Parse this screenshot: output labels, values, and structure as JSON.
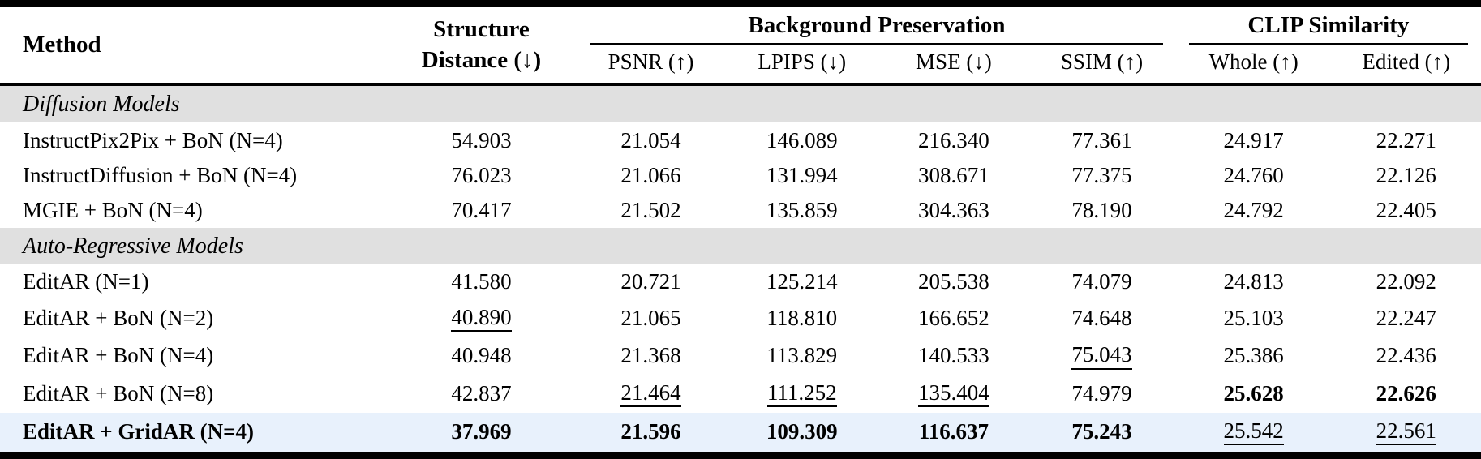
{
  "colors": {
    "section_bg": "#e0e0e0",
    "highlight_bg": "#e8f1fc",
    "rule_color": "#000000",
    "text": "#000000"
  },
  "table": {
    "header": {
      "method": "Method",
      "structure_line1": "Structure",
      "structure_line2": "Distance (↓)",
      "groups": [
        {
          "label": "Background Preservation",
          "cols": [
            "PSNR (↑)",
            "LPIPS (↓)",
            "MSE (↓)",
            "SSIM (↑)"
          ]
        },
        {
          "label": "CLIP Similarity",
          "cols": [
            "Whole (↑)",
            "Edited (↑)"
          ]
        }
      ]
    },
    "rows": [
      {
        "type": "section",
        "label": "Diffusion Models"
      },
      {
        "type": "data",
        "method": "InstructPix2Pix + BoN (N=4)",
        "method_bold": false,
        "highlight": false,
        "cells": [
          {
            "v": "54.903",
            "b": false,
            "u": false
          },
          {
            "v": "21.054",
            "b": false,
            "u": false
          },
          {
            "v": "146.089",
            "b": false,
            "u": false
          },
          {
            "v": "216.340",
            "b": false,
            "u": false
          },
          {
            "v": "77.361",
            "b": false,
            "u": false
          },
          {
            "v": "24.917",
            "b": false,
            "u": false
          },
          {
            "v": "22.271",
            "b": false,
            "u": false
          }
        ]
      },
      {
        "type": "data",
        "method": "InstructDiffusion + BoN (N=4)",
        "method_bold": false,
        "highlight": false,
        "cells": [
          {
            "v": "76.023",
            "b": false,
            "u": false
          },
          {
            "v": "21.066",
            "b": false,
            "u": false
          },
          {
            "v": "131.994",
            "b": false,
            "u": false
          },
          {
            "v": "308.671",
            "b": false,
            "u": false
          },
          {
            "v": "77.375",
            "b": false,
            "u": false
          },
          {
            "v": "24.760",
            "b": false,
            "u": false
          },
          {
            "v": "22.126",
            "b": false,
            "u": false
          }
        ]
      },
      {
        "type": "data",
        "method": "MGIE + BoN (N=4)",
        "method_bold": false,
        "highlight": false,
        "cells": [
          {
            "v": "70.417",
            "b": false,
            "u": false
          },
          {
            "v": "21.502",
            "b": false,
            "u": false
          },
          {
            "v": "135.859",
            "b": false,
            "u": false
          },
          {
            "v": "304.363",
            "b": false,
            "u": false
          },
          {
            "v": "78.190",
            "b": false,
            "u": false
          },
          {
            "v": "24.792",
            "b": false,
            "u": false
          },
          {
            "v": "22.405",
            "b": false,
            "u": false
          }
        ]
      },
      {
        "type": "section",
        "label": "Auto-Regressive Models"
      },
      {
        "type": "data",
        "method": "EditAR (N=1)",
        "method_bold": false,
        "highlight": false,
        "cells": [
          {
            "v": "41.580",
            "b": false,
            "u": false
          },
          {
            "v": "20.721",
            "b": false,
            "u": false
          },
          {
            "v": "125.214",
            "b": false,
            "u": false
          },
          {
            "v": "205.538",
            "b": false,
            "u": false
          },
          {
            "v": "74.079",
            "b": false,
            "u": false
          },
          {
            "v": "24.813",
            "b": false,
            "u": false
          },
          {
            "v": "22.092",
            "b": false,
            "u": false
          }
        ]
      },
      {
        "type": "data",
        "method": "EditAR + BoN (N=2)",
        "method_bold": false,
        "highlight": false,
        "cells": [
          {
            "v": "40.890",
            "b": false,
            "u": true
          },
          {
            "v": "21.065",
            "b": false,
            "u": false
          },
          {
            "v": "118.810",
            "b": false,
            "u": false
          },
          {
            "v": "166.652",
            "b": false,
            "u": false
          },
          {
            "v": "74.648",
            "b": false,
            "u": false
          },
          {
            "v": "25.103",
            "b": false,
            "u": false
          },
          {
            "v": "22.247",
            "b": false,
            "u": false
          }
        ]
      },
      {
        "type": "data",
        "method": "EditAR + BoN (N=4)",
        "method_bold": false,
        "highlight": false,
        "cells": [
          {
            "v": "40.948",
            "b": false,
            "u": false
          },
          {
            "v": "21.368",
            "b": false,
            "u": false
          },
          {
            "v": "113.829",
            "b": false,
            "u": false
          },
          {
            "v": "140.533",
            "b": false,
            "u": false
          },
          {
            "v": "75.043",
            "b": false,
            "u": true
          },
          {
            "v": "25.386",
            "b": false,
            "u": false
          },
          {
            "v": "22.436",
            "b": false,
            "u": false
          }
        ]
      },
      {
        "type": "data",
        "method": "EditAR + BoN (N=8)",
        "method_bold": false,
        "highlight": false,
        "cells": [
          {
            "v": "42.837",
            "b": false,
            "u": false
          },
          {
            "v": "21.464",
            "b": false,
            "u": true
          },
          {
            "v": "111.252",
            "b": false,
            "u": true
          },
          {
            "v": "135.404",
            "b": false,
            "u": true
          },
          {
            "v": "74.979",
            "b": false,
            "u": false
          },
          {
            "v": "25.628",
            "b": true,
            "u": false
          },
          {
            "v": "22.626",
            "b": true,
            "u": false
          }
        ]
      },
      {
        "type": "data",
        "method": "EditAR + GridAR (N=4)",
        "method_bold": true,
        "highlight": true,
        "cells": [
          {
            "v": "37.969",
            "b": true,
            "u": false
          },
          {
            "v": "21.596",
            "b": true,
            "u": false
          },
          {
            "v": "109.309",
            "b": true,
            "u": false
          },
          {
            "v": "116.637",
            "b": true,
            "u": false
          },
          {
            "v": "75.243",
            "b": true,
            "u": false
          },
          {
            "v": "25.542",
            "b": false,
            "u": true
          },
          {
            "v": "22.561",
            "b": false,
            "u": true
          }
        ]
      }
    ]
  }
}
